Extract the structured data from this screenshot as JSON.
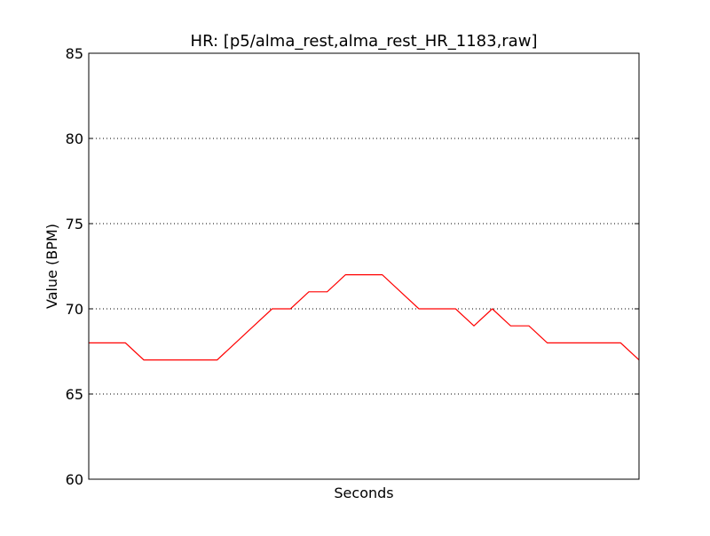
{
  "chart_data": {
    "type": "line",
    "title": "HR: [p5/alma_rest,alma_rest_HR_1183,raw]",
    "xlabel": "Seconds",
    "ylabel": "Value (BPM)",
    "xlim": [
      0,
      30
    ],
    "ylim": [
      60,
      85
    ],
    "y_ticks": [
      "60",
      "65",
      "70",
      "75",
      "80",
      "85"
    ],
    "grid": "horizontal dotted",
    "x_tick_labels_shown": false,
    "series": [
      {
        "color": "#ff0000",
        "x": [
          0,
          2,
          3,
          4,
          5,
          6,
          7,
          8,
          9,
          10,
          11,
          12,
          13,
          14,
          15,
          16,
          17,
          18,
          19,
          20,
          21,
          22,
          23,
          24,
          25,
          26,
          27,
          28,
          29,
          30
        ],
        "y": [
          68,
          68,
          67,
          67,
          67,
          67,
          67,
          68,
          69,
          70,
          70,
          71,
          71,
          72,
          72,
          72,
          71,
          70,
          70,
          70,
          69,
          70,
          69,
          69,
          68,
          68,
          68,
          68,
          68,
          67
        ]
      }
    ]
  }
}
